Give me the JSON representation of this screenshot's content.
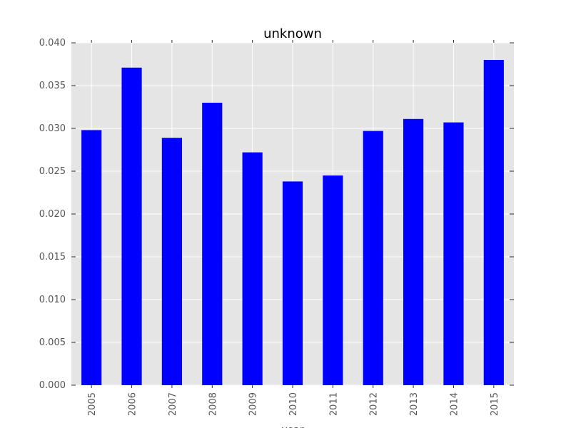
{
  "chart_data": {
    "type": "bar",
    "title": "unknown",
    "xlabel": "year",
    "ylabel": "",
    "categories": [
      "2005",
      "2006",
      "2007",
      "2008",
      "2009",
      "2010",
      "2011",
      "2012",
      "2013",
      "2014",
      "2015"
    ],
    "values": [
      0.0298,
      0.0371,
      0.0289,
      0.033,
      0.0272,
      0.0238,
      0.0245,
      0.0297,
      0.0311,
      0.0307,
      0.038
    ],
    "ylim": [
      0,
      0.04
    ],
    "yticks": [
      "0.000",
      "0.005",
      "0.010",
      "0.015",
      "0.020",
      "0.025",
      "0.030",
      "0.035",
      "0.040"
    ],
    "grid": true,
    "legend": "none",
    "colors": {
      "bar": "#0000ff",
      "plot_background": "#e5e5e5",
      "grid": "#ffffff",
      "tick_text": "#555555"
    }
  }
}
